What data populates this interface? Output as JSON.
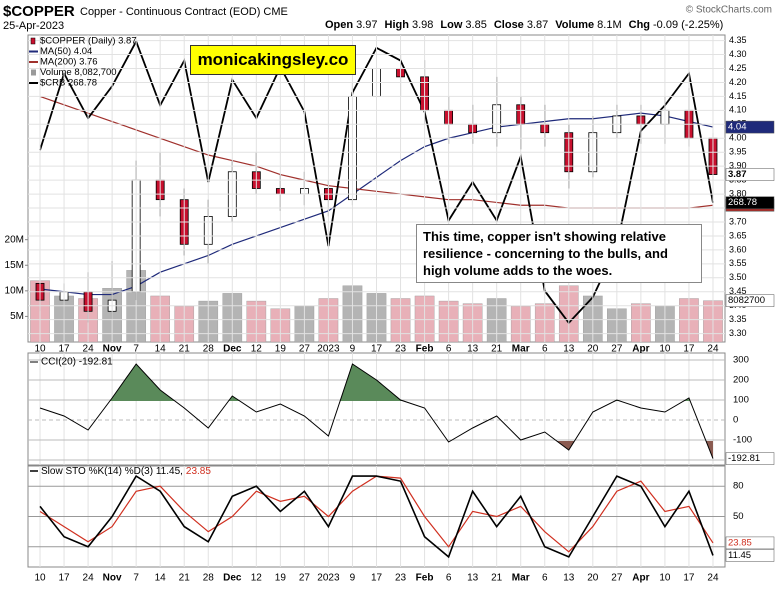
{
  "header": {
    "title": "$COPPER",
    "subtitle": "Copper - Continuous Contract (EOD) CME",
    "date": "25-Apr-2023",
    "source": "© StockCharts.com",
    "quote": [
      {
        "label": "Open",
        "value": "3.97"
      },
      {
        "label": "High",
        "value": "3.98"
      },
      {
        "label": "Low",
        "value": "3.85"
      },
      {
        "label": "Close",
        "value": "3.87"
      },
      {
        "label": "Volume",
        "value": "8.1M"
      },
      {
        "label": "Chg",
        "value": "-0.09 (-2.25%)"
      }
    ]
  },
  "annotations": {
    "watermark": "monicakingsley.co",
    "note": "This time, copper isn't showing relative resilience - concerning to the bulls, and high volume adds to the woes."
  },
  "chart_data": [
    {
      "type": "candlestick",
      "categories": [
        "10",
        "17",
        "24",
        "Nov",
        "7",
        "14",
        "21",
        "28",
        "Dec",
        "12",
        "19",
        "27",
        "2023",
        "9",
        "17",
        "23",
        "Feb",
        "6",
        "13",
        "21",
        "Mar",
        "6",
        "13",
        "20",
        "27",
        "Apr",
        "10",
        "17",
        "24"
      ],
      "ylim": [
        3.27,
        4.37
      ],
      "yticks": [
        {
          "value": 4.35,
          "label": "4.35"
        },
        {
          "value": 4.3,
          "label": "4.30"
        },
        {
          "value": 4.25,
          "label": "4.25"
        },
        {
          "value": 4.2,
          "label": "4.20"
        },
        {
          "value": 4.15,
          "label": "4.15"
        },
        {
          "value": 4.1,
          "label": "4.10"
        },
        {
          "value": 4.05,
          "label": "4.05"
        },
        {
          "value": 4.0,
          "label": "4.00"
        },
        {
          "value": 3.95,
          "label": "3.95"
        },
        {
          "value": 3.9,
          "label": "3.90"
        },
        {
          "value": 3.85,
          "label": "3.85"
        },
        {
          "value": 3.8,
          "label": "3.80"
        },
        {
          "value": 3.75,
          "label": "3.75"
        },
        {
          "value": 3.7,
          "label": "3.70"
        },
        {
          "value": 3.65,
          "label": "3.65"
        },
        {
          "value": 3.6,
          "label": "3.60"
        },
        {
          "value": 3.55,
          "label": "3.55"
        },
        {
          "value": 3.5,
          "label": "3.50"
        },
        {
          "value": 3.45,
          "label": "3.45"
        },
        {
          "value": 3.4,
          "label": "3.40"
        },
        {
          "value": 3.35,
          "label": "3.35"
        },
        {
          "value": 3.3,
          "label": "3.30"
        }
      ],
      "volume_lim": [
        0,
        60000000
      ],
      "volume_ticks": [
        {
          "value": 20000000,
          "label": "20M"
        },
        {
          "value": 15000000,
          "label": "15M"
        },
        {
          "value": 10000000,
          "label": "10M"
        },
        {
          "value": 5000000,
          "label": "5M"
        }
      ],
      "y2lim": [
        247,
        295
      ],
      "grid": true,
      "series": [
        {
          "name": "$COPPER (Daily) 3.87",
          "type": "candlestick",
          "up_color": "#ffffff",
          "down_color": "#c8102e",
          "volume_up_color": "#b4b4b4",
          "volume_down_color": "#e8b0b8",
          "open": [
            3.48,
            3.42,
            3.45,
            3.38,
            3.45,
            3.85,
            3.78,
            3.62,
            3.72,
            3.88,
            3.82,
            3.8,
            3.82,
            3.78,
            4.15,
            4.25,
            4.22,
            4.1,
            4.05,
            4.02,
            4.12,
            4.05,
            4.02,
            3.88,
            4.02,
            4.08,
            4.05,
            4.1,
            4.0
          ],
          "high": [
            3.52,
            3.48,
            3.52,
            3.56,
            3.92,
            3.95,
            3.82,
            3.78,
            3.92,
            3.95,
            3.87,
            3.88,
            3.85,
            4.2,
            4.33,
            4.3,
            4.28,
            4.15,
            4.12,
            4.22,
            4.15,
            4.12,
            4.05,
            4.08,
            4.12,
            4.12,
            4.15,
            4.18,
            4.02
          ],
          "low": [
            3.38,
            3.35,
            3.34,
            3.35,
            3.42,
            3.72,
            3.58,
            3.55,
            3.7,
            3.8,
            3.74,
            3.76,
            3.72,
            3.76,
            4.1,
            4.15,
            4.05,
            3.98,
            3.98,
            3.97,
            3.96,
            3.97,
            3.82,
            3.86,
            4.0,
            3.98,
            3.98,
            3.97,
            3.85
          ],
          "close": [
            3.42,
            3.45,
            3.38,
            3.42,
            3.85,
            3.78,
            3.62,
            3.72,
            3.88,
            3.82,
            3.8,
            3.82,
            3.78,
            4.15,
            4.25,
            4.22,
            4.1,
            4.05,
            4.02,
            4.12,
            4.05,
            4.02,
            3.88,
            4.02,
            4.08,
            4.05,
            4.1,
            4.0,
            3.87
          ]
        },
        {
          "name": "MA(50) 4.04",
          "color": "#1f2a7a",
          "values": [
            3.46,
            3.45,
            3.44,
            3.44,
            3.47,
            3.52,
            3.55,
            3.58,
            3.62,
            3.65,
            3.68,
            3.71,
            3.74,
            3.8,
            3.86,
            3.92,
            3.97,
            4.0,
            4.02,
            4.04,
            4.05,
            4.06,
            4.07,
            4.07,
            4.08,
            4.09,
            4.08,
            4.06,
            4.04
          ]
        },
        {
          "name": "MA(200) 3.76",
          "color": "#a0302c",
          "values": [
            4.15,
            4.12,
            4.09,
            4.06,
            4.03,
            4.0,
            3.97,
            3.94,
            3.92,
            3.9,
            3.87,
            3.85,
            3.83,
            3.82,
            3.81,
            3.8,
            3.79,
            3.78,
            3.78,
            3.77,
            3.76,
            3.76,
            3.75,
            3.75,
            3.75,
            3.75,
            3.75,
            3.75,
            3.76
          ]
        },
        {
          "name": "Volume 8,082,700",
          "axis": "volume",
          "color": "#9a9a9a",
          "values": [
            12000000,
            9000000,
            8500000,
            10500000,
            14000000,
            9000000,
            7000000,
            8000000,
            9500000,
            8000000,
            6500000,
            7000000,
            8500000,
            11000000,
            9500000,
            8500000,
            9000000,
            8000000,
            7500000,
            8500000,
            7000000,
            7500000,
            11000000,
            9000000,
            6500000,
            7500000,
            7000000,
            8500000,
            8082700
          ]
        },
        {
          "name": "$CRB 268.78",
          "axis": "y2",
          "color": "#000000",
          "values": [
            277,
            289,
            282,
            287,
            294,
            284,
            291,
            272,
            288,
            282,
            290,
            283,
            262,
            286,
            293,
            291,
            283,
            266,
            272,
            266,
            276,
            255,
            250,
            254,
            262,
            280,
            284,
            289,
            268.78
          ]
        }
      ]
    },
    {
      "type": "line",
      "title": "CCI(20) -192.81",
      "ylim": [
        -225,
        335
      ],
      "yticks": [
        300,
        200,
        100,
        0,
        -100,
        -200
      ],
      "grid": true,
      "above_color": "#5a8a5a",
      "below_color": "#8a5a50",
      "series": [
        {
          "name": "CCI(20)",
          "color": "#000000",
          "values": [
            60,
            20,
            -50,
            110,
            280,
            150,
            60,
            -40,
            120,
            40,
            80,
            20,
            -80,
            280,
            200,
            100,
            60,
            -110,
            -40,
            20,
            -100,
            -60,
            -150,
            40,
            100,
            60,
            40,
            110,
            -192.81
          ]
        }
      ]
    },
    {
      "type": "line",
      "title": "Slow STO %K(14) %D(3) 11.45,",
      "ylim": [
        0,
        100
      ],
      "yticks": [
        80,
        50,
        20
      ],
      "grid": true,
      "categories": [
        "10",
        "17",
        "24",
        "Nov",
        "7",
        "14",
        "21",
        "28",
        "Dec",
        "12",
        "19",
        "27",
        "2023",
        "9",
        "17",
        "23",
        "Feb",
        "6",
        "13",
        "21",
        "Mar",
        "6",
        "13",
        "20",
        "27",
        "Apr",
        "10",
        "17",
        "24"
      ],
      "series": [
        {
          "name": "%K(14)",
          "color": "#000000",
          "values": [
            60,
            30,
            20,
            50,
            90,
            75,
            40,
            25,
            70,
            80,
            55,
            75,
            40,
            90,
            90,
            85,
            30,
            10,
            75,
            40,
            70,
            20,
            10,
            50,
            90,
            80,
            40,
            75,
            11.45
          ]
        },
        {
          "name": "%D(3)",
          "color": "#d03020",
          "values": [
            55,
            40,
            25,
            40,
            75,
            80,
            55,
            35,
            50,
            75,
            65,
            70,
            50,
            75,
            90,
            88,
            50,
            20,
            55,
            50,
            60,
            35,
            15,
            40,
            75,
            85,
            55,
            60,
            23.85
          ]
        }
      ]
    }
  ]
}
